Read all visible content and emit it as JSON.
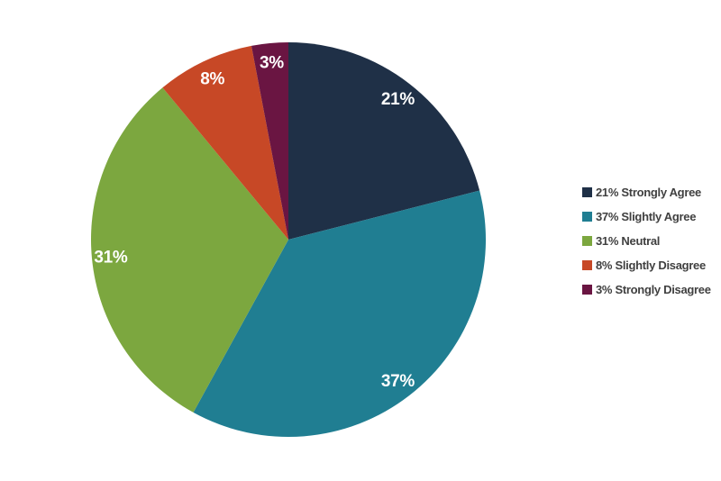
{
  "chart_data": {
    "type": "pie",
    "title": "",
    "categories": [
      "Strongly Agree",
      "Slightly Agree",
      "Neutral",
      "Slightly Disagree",
      "Strongly Disagree"
    ],
    "values": [
      21,
      37,
      31,
      8,
      3
    ],
    "unit": "%",
    "colors": [
      "#1F3047",
      "#207E92",
      "#7CA73F",
      "#C74826",
      "#6A1542"
    ],
    "slice_labels": [
      "21%",
      "37%",
      "31%",
      "8%",
      "3%"
    ],
    "legend": [
      "21% Strongly Agree",
      "37% Slightly Agree",
      "31% Neutral",
      "8% Slightly Disagree",
      "3% Strongly Disagree"
    ],
    "legend_position": "right",
    "start_angle": "12-oclock",
    "direction": "clockwise",
    "slice_label_color": "#FFFFFF",
    "legend_text_color": "#404040",
    "background": "#FFFFFF"
  }
}
